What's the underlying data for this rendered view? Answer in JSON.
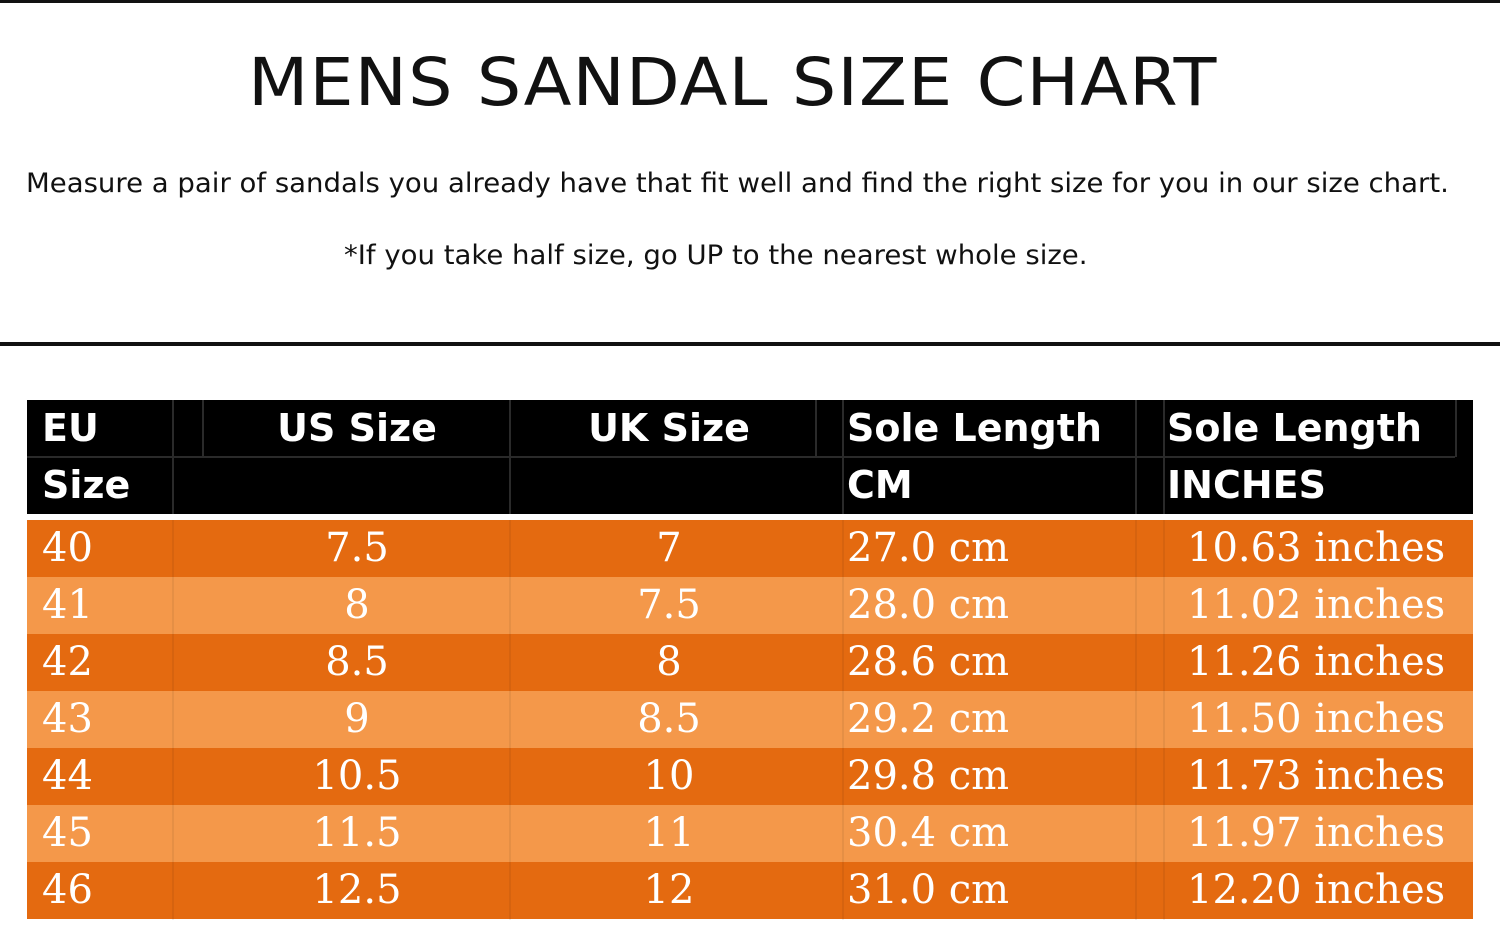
{
  "title": "MENS SANDAL SIZE CHART",
  "subtitle": "Measure a pair of sandals you already have that fit well and find the right size for you in our size chart.",
  "note": "*If you take half size, go UP to the nearest whole size.",
  "table": {
    "headers": {
      "eu_line1": "EU",
      "eu_line2": "Size",
      "us": "US Size",
      "uk": "UK Size",
      "cm_line1": "Sole Length",
      "cm_line2": "CM",
      "in_line1": "Sole Length",
      "in_line2": "INCHES"
    },
    "rows": [
      {
        "eu": "40",
        "us": "7.5",
        "uk": "7",
        "cm": "27.0 cm",
        "inches": "10.63 inches"
      },
      {
        "eu": "41",
        "us": "8",
        "uk": "7.5",
        "cm": "28.0 cm",
        "inches": "11.02 inches"
      },
      {
        "eu": "42",
        "us": "8.5",
        "uk": "8",
        "cm": "28.6 cm",
        "inches": "11.26 inches"
      },
      {
        "eu": "43",
        "us": "9",
        "uk": "8.5",
        "cm": "29.2 cm",
        "inches": "11.50 inches"
      },
      {
        "eu": "44",
        "us": "10.5",
        "uk": "10",
        "cm": "29.8 cm",
        "inches": "11.73 inches"
      },
      {
        "eu": "45",
        "us": "11.5",
        "uk": "11",
        "cm": "30.4 cm",
        "inches": "11.97 inches"
      },
      {
        "eu": "46",
        "us": "12.5",
        "uk": "12",
        "cm": "31.0 cm",
        "inches": "12.20 inches"
      }
    ]
  },
  "colors": {
    "header_bg": "#000000",
    "row_dark": "#e46a10",
    "row_light": "#f4984a",
    "text_light": "#ffffff"
  }
}
